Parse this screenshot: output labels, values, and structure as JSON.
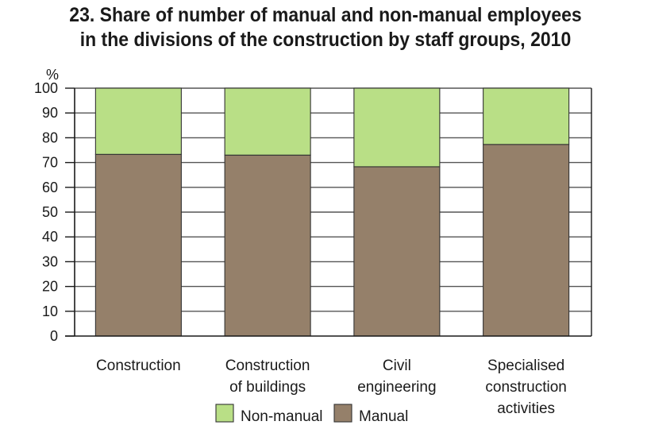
{
  "chart_data": {
    "type": "bar",
    "stacked": true,
    "title_lines": [
      "23. Share of number of manual and non-manual employees",
      "in the divisions of the construction by staff groups, 2010"
    ],
    "ylabel": "%",
    "ylim": [
      0,
      100
    ],
    "yticks": [
      0,
      10,
      20,
      30,
      40,
      50,
      60,
      70,
      80,
      90,
      100
    ],
    "grid": true,
    "categories": [
      [
        "Construction"
      ],
      [
        "Construction",
        "of buildings"
      ],
      [
        "Civil",
        "engineering"
      ],
      [
        "Specialised",
        "construction",
        "activities"
      ]
    ],
    "series": [
      {
        "name": "Manual",
        "color": "#95806a",
        "values": [
          73.3,
          73.0,
          68.3,
          77.3
        ]
      },
      {
        "name": "Non-manual",
        "color": "#b9df86",
        "values": [
          26.7,
          27.0,
          31.7,
          22.7
        ]
      }
    ],
    "legend": {
      "placement": "bottom",
      "order": [
        "Non-manual",
        "Manual"
      ]
    }
  }
}
